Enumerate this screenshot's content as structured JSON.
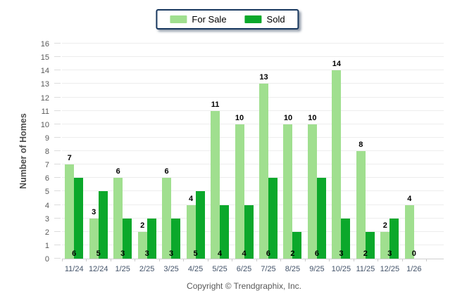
{
  "legend": {
    "items": [
      {
        "label": "For Sale"
      },
      {
        "label": "Sold"
      }
    ]
  },
  "y_axis": {
    "title": "Number of Homes",
    "ticks": [
      0,
      1,
      2,
      3,
      4,
      5,
      6,
      7,
      8,
      9,
      10,
      11,
      12,
      13,
      14,
      15,
      16
    ]
  },
  "footer": {
    "copyright": "Copyright © Trendgraphix, Inc."
  },
  "colors": {
    "for_sale": "#A0DF8F",
    "sold": "#0BA82B",
    "grid": "#EDEDED",
    "axis": "#CFCFCF",
    "legend_border": "#17375E",
    "x_label_text": "#44546A",
    "y_label_text": "#595959",
    "value_label_text": "#000000"
  },
  "chart_data": {
    "type": "bar",
    "title": "",
    "xlabel": "",
    "ylabel": "Number of Homes",
    "ylim": [
      0,
      16
    ],
    "grid": true,
    "legend_position": "top-center",
    "categories": [
      "11/24",
      "12/24",
      "1/25",
      "2/25",
      "3/25",
      "4/25",
      "5/25",
      "6/25",
      "7/25",
      "8/25",
      "9/25",
      "10/25",
      "11/25",
      "12/25",
      "1/26"
    ],
    "series": [
      {
        "name": "For Sale",
        "values": [
          7,
          3,
          6,
          2,
          6,
          4,
          11,
          10,
          13,
          10,
          10,
          14,
          8,
          2,
          4
        ]
      },
      {
        "name": "Sold",
        "values": [
          6,
          5,
          3,
          3,
          3,
          5,
          4,
          4,
          6,
          2,
          6,
          3,
          2,
          3,
          0
        ]
      }
    ]
  }
}
